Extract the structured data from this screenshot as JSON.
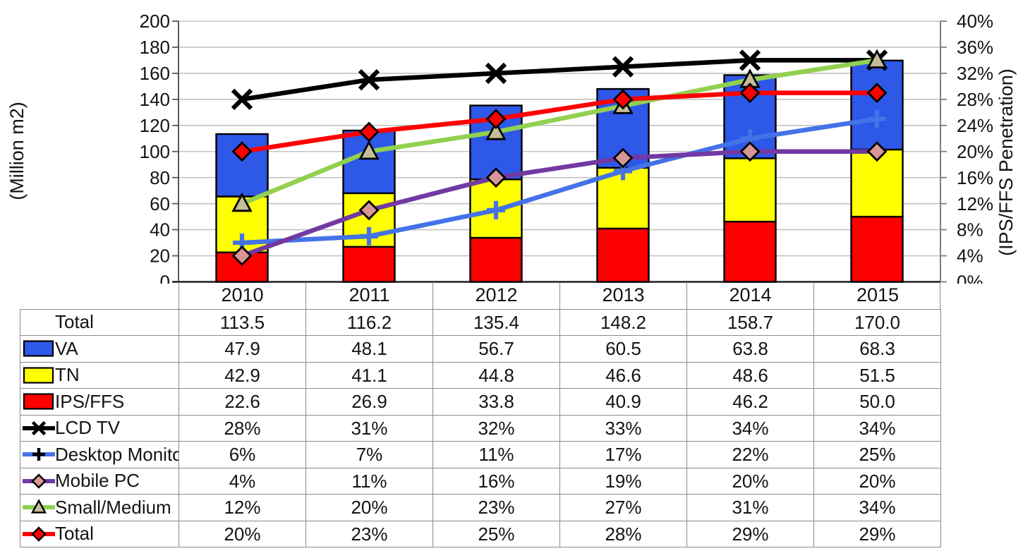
{
  "chart": {
    "left_axis": {
      "title": "(Million m2)",
      "ticks": [
        "200",
        "180",
        "160",
        "140",
        "120",
        "100",
        "80",
        "60",
        "40",
        "20",
        "0"
      ]
    },
    "right_axis": {
      "title": "(IPS/FFS Penetration)",
      "ticks": [
        "40%",
        "36%",
        "32%",
        "28%",
        "24%",
        "20%",
        "16%",
        "12%",
        "8%",
        "4%",
        "0%"
      ]
    }
  },
  "chart_data": {
    "type": "combo_stacked_bar_line",
    "categories": [
      "2010",
      "2011",
      "2012",
      "2013",
      "2014",
      "2015"
    ],
    "left_axis": {
      "label": "(Million m2)",
      "min": 0,
      "max": 200,
      "step": 20
    },
    "right_axis": {
      "label": "(IPS/FFS Penetration)",
      "min": 0,
      "max": 40,
      "step": 4,
      "format": "percent"
    },
    "grid": true,
    "legend_position": "data-table-left-column",
    "bar_series": [
      {
        "name": "IPS/FFS",
        "color": "#FF0000",
        "values": [
          22.6,
          26.9,
          33.8,
          40.9,
          46.2,
          50.0
        ]
      },
      {
        "name": "TN",
        "color": "#FFFF00",
        "values": [
          42.9,
          41.1,
          44.8,
          46.6,
          48.6,
          51.5
        ]
      },
      {
        "name": "VA",
        "color": "#2E58E8",
        "values": [
          47.9,
          48.1,
          56.7,
          60.5,
          63.8,
          68.3
        ]
      }
    ],
    "bar_totals": [
      113.5,
      116.2,
      135.4,
      148.2,
      158.7,
      170.0
    ],
    "line_series": [
      {
        "name": "LCD TV",
        "color": "#000000",
        "marker": "x",
        "marker_fill": "#000000",
        "values_pct": [
          28,
          31,
          32,
          33,
          34,
          34
        ]
      },
      {
        "name": "Desktop Monitor",
        "color": "#4472E8",
        "marker": "plus",
        "marker_fill": "#000000",
        "values_pct": [
          6,
          7,
          11,
          17,
          22,
          25
        ]
      },
      {
        "name": "Mobile PC",
        "color": "#7239A3",
        "marker": "diamond",
        "marker_fill": "#D99694",
        "values_pct": [
          4,
          11,
          16,
          19,
          20,
          20
        ]
      },
      {
        "name": "Small/Medium",
        "color": "#92D050",
        "marker": "triangle",
        "marker_fill": "#C4BD97",
        "values_pct": [
          12,
          20,
          23,
          27,
          31,
          34
        ]
      },
      {
        "name": "Total",
        "color": "#FF0000",
        "marker": "diamond",
        "marker_fill": "#FF0000",
        "values_pct": [
          20,
          23,
          25,
          28,
          29,
          29
        ]
      }
    ]
  },
  "table": {
    "header": [
      "2010",
      "2011",
      "2012",
      "2013",
      "2014",
      "2015"
    ],
    "rows": [
      {
        "label": "Total",
        "key": "none",
        "values": [
          "113.5",
          "116.2",
          "135.4",
          "148.2",
          "158.7",
          "170.0"
        ]
      },
      {
        "label": "VA",
        "key": "box",
        "color": "#2E58E8",
        "values": [
          "47.9",
          "48.1",
          "56.7",
          "60.5",
          "63.8",
          "68.3"
        ]
      },
      {
        "label": "TN",
        "key": "box",
        "color": "#FFFF00",
        "values": [
          "42.9",
          "41.1",
          "44.8",
          "46.6",
          "48.6",
          "51.5"
        ]
      },
      {
        "label": "IPS/FFS",
        "key": "box",
        "color": "#FF0000",
        "values": [
          "22.6",
          "26.9",
          "33.8",
          "40.9",
          "46.2",
          "50.0"
        ]
      },
      {
        "label": "LCD TV",
        "key": "line",
        "color": "#000000",
        "marker": "x",
        "marker_fill": "#000000",
        "values": [
          "28%",
          "31%",
          "32%",
          "33%",
          "34%",
          "34%"
        ]
      },
      {
        "label": "Desktop Monitor",
        "key": "line",
        "color": "#4472E8",
        "marker": "plus",
        "marker_fill": "#000000",
        "values": [
          "6%",
          "7%",
          "11%",
          "17%",
          "22%",
          "25%"
        ]
      },
      {
        "label": "Mobile PC",
        "key": "line",
        "color": "#7239A3",
        "marker": "diamond",
        "marker_fill": "#D99694",
        "values": [
          "4%",
          "11%",
          "16%",
          "19%",
          "20%",
          "20%"
        ]
      },
      {
        "label": "Small/Medium",
        "key": "line",
        "color": "#92D050",
        "marker": "triangle",
        "marker_fill": "#C4BD97",
        "values": [
          "12%",
          "20%",
          "23%",
          "27%",
          "31%",
          "34%"
        ]
      },
      {
        "label": "Total",
        "key": "line",
        "color": "#FF0000",
        "marker": "diamond",
        "marker_fill": "#FF0000",
        "values": [
          "20%",
          "23%",
          "25%",
          "28%",
          "29%",
          "29%"
        ]
      }
    ]
  },
  "colors": {
    "gridline": "#C3C3C3",
    "table_border": "#8C8C8C",
    "axis_left": "#595959",
    "axis_bottom": "#1F1F1F",
    "axis_right": "#7F7F7F",
    "text": "#141414"
  }
}
